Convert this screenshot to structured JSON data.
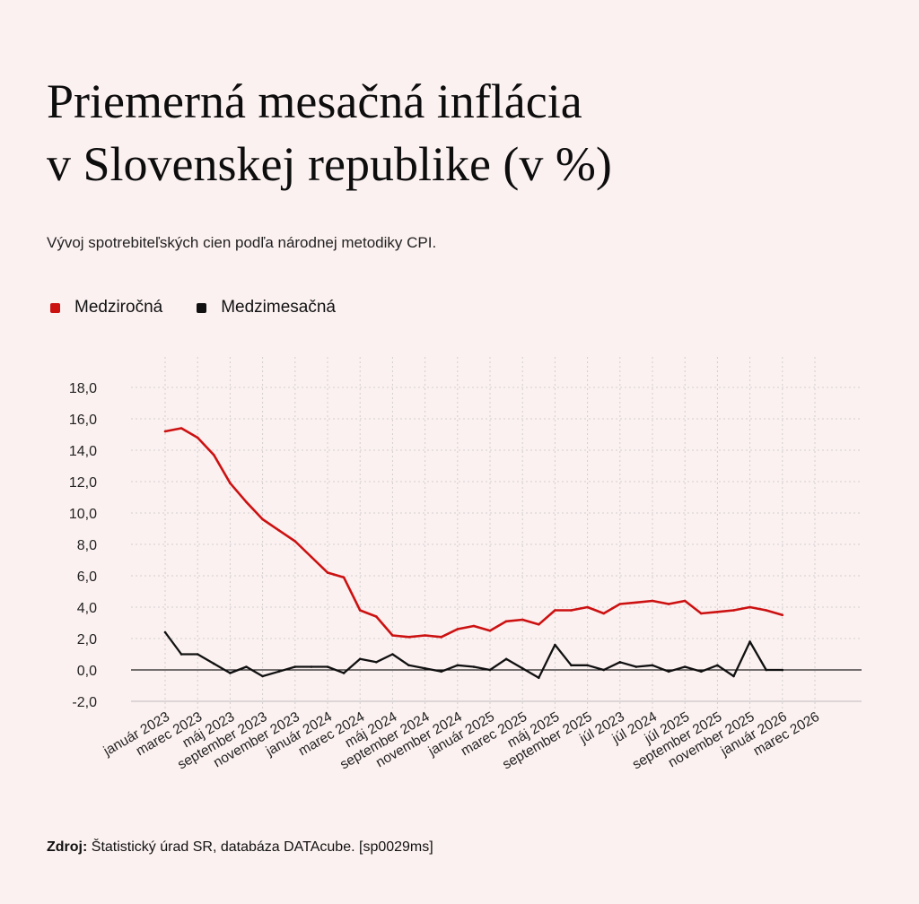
{
  "header": {
    "title_line1": "Priemerná mesačná inflácia",
    "title_line2": "v Slovenskej republike (v %)",
    "subtitle": "Vývoj spotrebiteľských cien podľa národnej metodiky CPI."
  },
  "source": {
    "label": "Zdroj:",
    "text": "Štatistický úrad SR, databáza DATAcube. [sp0029ms]"
  },
  "colors": {
    "background": "#fcf1f1",
    "series_yoy": "#cc1111",
    "series_mom": "#111111",
    "grid": "#cfcfcf"
  },
  "chart_data": {
    "type": "line",
    "title": "Priemerná mesačná inflácia v Slovenskej republike (v %)",
    "xlabel": "",
    "ylabel": "",
    "ylim": [
      -2,
      18
    ],
    "yticks": [
      "-2,0",
      "0,0",
      "2,0",
      "4,0",
      "6,0",
      "8,0",
      "10,0",
      "12,0",
      "14,0",
      "16,0",
      "18,0"
    ],
    "x_labels": [
      "január 2023",
      "marec 2023",
      "máj 2023",
      "september 2023",
      "november 2023",
      "január 2024",
      "marec 2024",
      "máj 2024",
      "september 2024",
      "november 2024",
      "január 2025",
      "marec 2025",
      "máj 2025",
      "september 2025",
      "júl 2023",
      "júl 2024",
      "júl 2025",
      "september 2025",
      "november 2025",
      "január 2026",
      "marec 2026"
    ],
    "series": [
      {
        "name": "Medziročná",
        "color": "#cc1111",
        "values": [
          15.2,
          15.4,
          14.8,
          13.7,
          11.9,
          10.7,
          9.6,
          8.9,
          8.2,
          7.2,
          6.2,
          5.9,
          3.8,
          3.4,
          2.2,
          2.1,
          2.2,
          2.1,
          2.6,
          2.8,
          2.5,
          3.1,
          3.2,
          2.9,
          3.8,
          3.8,
          4.0,
          3.6,
          4.2,
          4.3,
          4.4,
          4.2,
          4.4,
          3.6,
          3.7,
          3.8,
          4.0,
          3.8,
          3.5
        ]
      },
      {
        "name": "Medzimesačná",
        "color": "#111111",
        "values": [
          2.4,
          1.0,
          1.0,
          0.4,
          -0.2,
          0.2,
          -0.4,
          -0.1,
          0.2,
          0.2,
          0.2,
          -0.2,
          0.7,
          0.5,
          1.0,
          0.3,
          0.1,
          -0.1,
          0.3,
          0.2,
          0.0,
          0.7,
          0.1,
          -0.5,
          1.6,
          0.3,
          0.3,
          0.0,
          0.5,
          0.2,
          0.3,
          -0.1,
          0.2,
          -0.1,
          0.3,
          -0.4,
          1.8,
          0.0,
          0.0
        ]
      }
    ],
    "legend": [
      {
        "label": "Medziročná",
        "color": "#cc1111"
      },
      {
        "label": "Medzimesačná",
        "color": "#111111"
      }
    ],
    "legend_position": "top-left",
    "grid": true
  }
}
